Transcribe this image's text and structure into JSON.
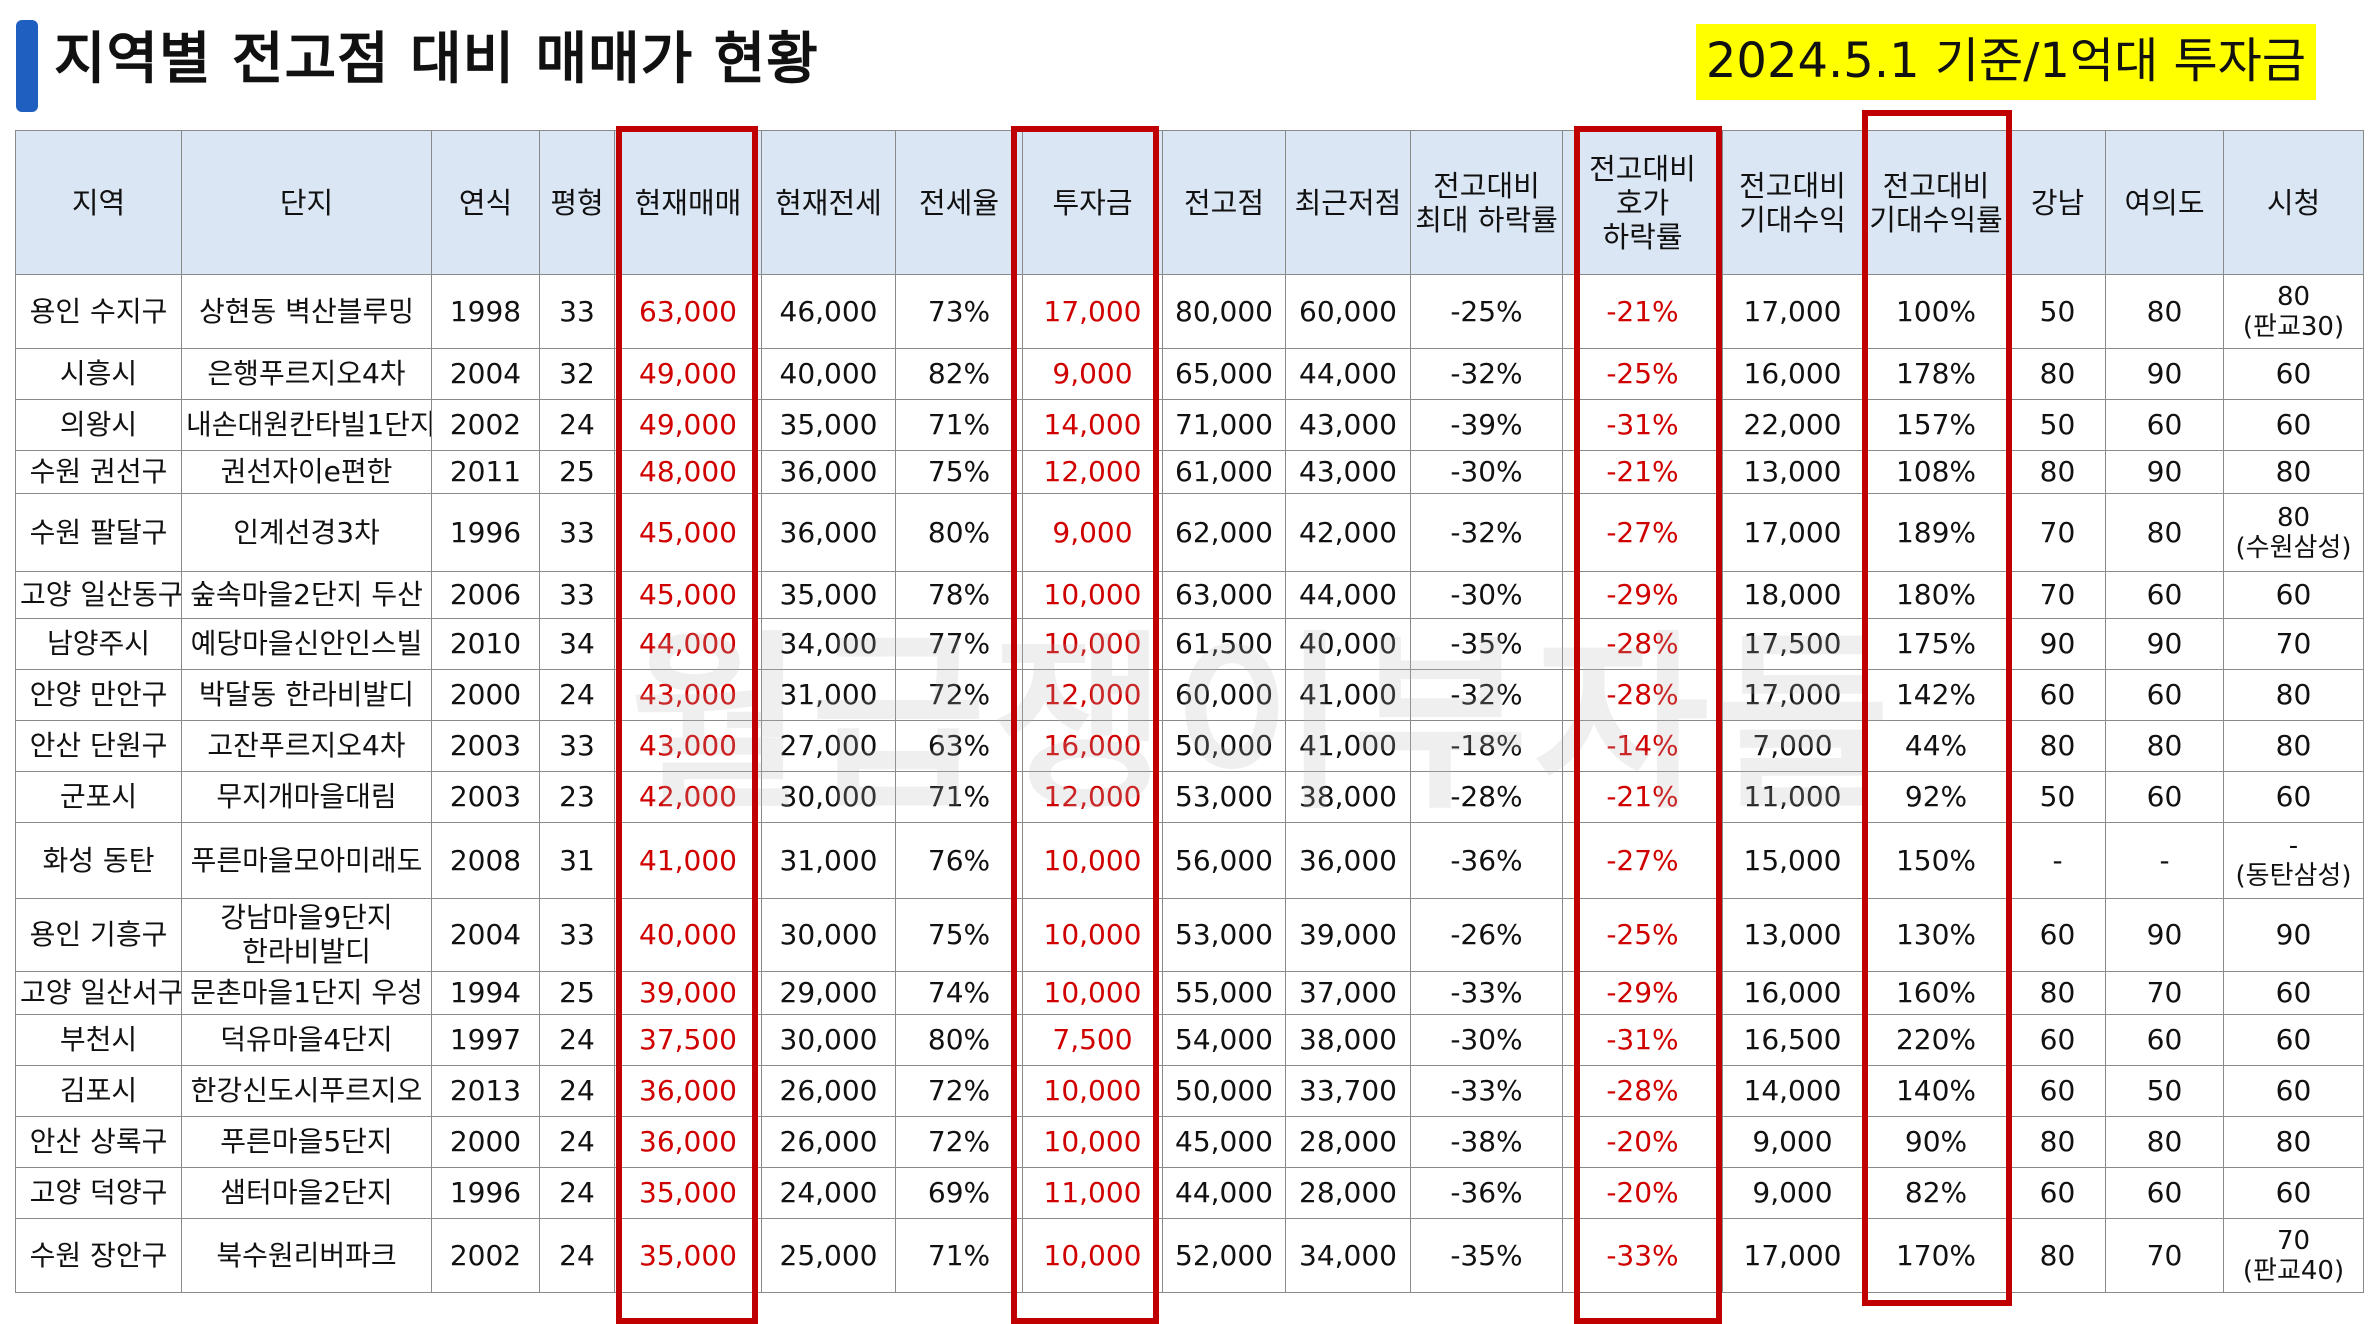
{
  "title": "지역별 전고점 대비 매매가 현황",
  "badge": "2024.5.1 기준/1억대 투자금",
  "watermark": "월급쟁이부자들",
  "colors": {
    "accent": "#1f5fbf",
    "highlight_box": "#c00000",
    "red_text": "#d00000",
    "header_bg": "#dbe6f4",
    "badge_bg": "#ffff00"
  },
  "table": {
    "headers": [
      [
        "지역"
      ],
      [
        "단지"
      ],
      [
        "연식"
      ],
      [
        "평형"
      ],
      [
        "현재매매"
      ],
      [
        "현재전세"
      ],
      [
        "전세율"
      ],
      [
        "투자금"
      ],
      [
        "전고점"
      ],
      [
        "최근저점"
      ],
      [
        "전고대비",
        "최대 하락률"
      ],
      [
        "전고대비",
        "호가",
        "하락률"
      ],
      [
        "전고대비",
        "기대수익"
      ],
      [
        "전고대비",
        "기대수익률"
      ],
      [
        "강남"
      ],
      [
        "여의도"
      ],
      [
        "시청"
      ]
    ],
    "rows": [
      {
        "region": "용인 수지구",
        "complex": [
          "상현동 벽산블루밍"
        ],
        "year": "1998",
        "size": "33",
        "price": "63,000",
        "jeonse": "46,000",
        "ratio": "73%",
        "invest": "17,000",
        "peak": "80,000",
        "low": "60,000",
        "maxdrop": "-25%",
        "askdrop": "-21%",
        "exp": "17,000",
        "exprate": "100%",
        "gangnam": "50",
        "yeouido": "80",
        "cityhall": "80",
        "cityhall_note": "(판교30)"
      },
      {
        "region": "시흥시",
        "complex": [
          "은행푸르지오4차"
        ],
        "year": "2004",
        "size": "32",
        "price": "49,000",
        "jeonse": "40,000",
        "ratio": "82%",
        "invest": "9,000",
        "peak": "65,000",
        "low": "44,000",
        "maxdrop": "-32%",
        "askdrop": "-25%",
        "exp": "16,000",
        "exprate": "178%",
        "gangnam": "80",
        "yeouido": "90",
        "cityhall": "60",
        "cityhall_note": ""
      },
      {
        "region": "의왕시",
        "complex": [
          "내손대원칸타빌1단지"
        ],
        "year": "2002",
        "size": "24",
        "price": "49,000",
        "jeonse": "35,000",
        "ratio": "71%",
        "invest": "14,000",
        "peak": "71,000",
        "low": "43,000",
        "maxdrop": "-39%",
        "askdrop": "-31%",
        "exp": "22,000",
        "exprate": "157%",
        "gangnam": "50",
        "yeouido": "60",
        "cityhall": "60",
        "cityhall_note": ""
      },
      {
        "region": "수원 권선구",
        "complex": [
          "권선자이e편한"
        ],
        "year": "2011",
        "size": "25",
        "price": "48,000",
        "jeonse": "36,000",
        "ratio": "75%",
        "invest": "12,000",
        "peak": "61,000",
        "low": "43,000",
        "maxdrop": "-30%",
        "askdrop": "-21%",
        "exp": "13,000",
        "exprate": "108%",
        "gangnam": "80",
        "yeouido": "90",
        "cityhall": "80",
        "cityhall_note": ""
      },
      {
        "region": "수원 팔달구",
        "complex": [
          "인계선경3차"
        ],
        "year": "1996",
        "size": "33",
        "price": "45,000",
        "jeonse": "36,000",
        "ratio": "80%",
        "invest": "9,000",
        "peak": "62,000",
        "low": "42,000",
        "maxdrop": "-32%",
        "askdrop": "-27%",
        "exp": "17,000",
        "exprate": "189%",
        "gangnam": "70",
        "yeouido": "80",
        "cityhall": "80",
        "cityhall_note": "(수원삼성)"
      },
      {
        "region": "고양 일산동구",
        "complex": [
          "숲속마을2단지 두산"
        ],
        "year": "2006",
        "size": "33",
        "price": "45,000",
        "jeonse": "35,000",
        "ratio": "78%",
        "invest": "10,000",
        "peak": "63,000",
        "low": "44,000",
        "maxdrop": "-30%",
        "askdrop": "-29%",
        "exp": "18,000",
        "exprate": "180%",
        "gangnam": "70",
        "yeouido": "60",
        "cityhall": "60",
        "cityhall_note": ""
      },
      {
        "region": "남양주시",
        "complex": [
          "예당마을신안인스빌"
        ],
        "year": "2010",
        "size": "34",
        "price": "44,000",
        "jeonse": "34,000",
        "ratio": "77%",
        "invest": "10,000",
        "peak": "61,500",
        "low": "40,000",
        "maxdrop": "-35%",
        "askdrop": "-28%",
        "exp": "17,500",
        "exprate": "175%",
        "gangnam": "90",
        "yeouido": "90",
        "cityhall": "70",
        "cityhall_note": ""
      },
      {
        "region": "안양 만안구",
        "complex": [
          "박달동 한라비발디"
        ],
        "year": "2000",
        "size": "24",
        "price": "43,000",
        "jeonse": "31,000",
        "ratio": "72%",
        "invest": "12,000",
        "peak": "60,000",
        "low": "41,000",
        "maxdrop": "-32%",
        "askdrop": "-28%",
        "exp": "17,000",
        "exprate": "142%",
        "gangnam": "60",
        "yeouido": "60",
        "cityhall": "80",
        "cityhall_note": ""
      },
      {
        "region": "안산 단원구",
        "complex": [
          "고잔푸르지오4차"
        ],
        "year": "2003",
        "size": "33",
        "price": "43,000",
        "jeonse": "27,000",
        "ratio": "63%",
        "invest": "16,000",
        "peak": "50,000",
        "low": "41,000",
        "maxdrop": "-18%",
        "askdrop": "-14%",
        "exp": "7,000",
        "exprate": "44%",
        "gangnam": "80",
        "yeouido": "80",
        "cityhall": "80",
        "cityhall_note": ""
      },
      {
        "region": "군포시",
        "complex": [
          "무지개마을대림"
        ],
        "year": "2003",
        "size": "23",
        "price": "42,000",
        "jeonse": "30,000",
        "ratio": "71%",
        "invest": "12,000",
        "peak": "53,000",
        "low": "38,000",
        "maxdrop": "-28%",
        "askdrop": "-21%",
        "exp": "11,000",
        "exprate": "92%",
        "gangnam": "50",
        "yeouido": "60",
        "cityhall": "60",
        "cityhall_note": ""
      },
      {
        "region": "화성  동탄",
        "complex": [
          "푸른마을모아미래도"
        ],
        "year": "2008",
        "size": "31",
        "price": "41,000",
        "jeonse": "31,000",
        "ratio": "76%",
        "invest": "10,000",
        "peak": "56,000",
        "low": "36,000",
        "maxdrop": "-36%",
        "askdrop": "-27%",
        "exp": "15,000",
        "exprate": "150%",
        "gangnam": "-",
        "yeouido": "-",
        "cityhall": "-",
        "cityhall_note": "(동탄삼성)"
      },
      {
        "region": "용인 기흥구",
        "complex": [
          "강남마을9단지",
          "한라비발디"
        ],
        "year": "2004",
        "size": "33",
        "price": "40,000",
        "jeonse": "30,000",
        "ratio": "75%",
        "invest": "10,000",
        "peak": "53,000",
        "low": "39,000",
        "maxdrop": "-26%",
        "askdrop": "-25%",
        "exp": "13,000",
        "exprate": "130%",
        "gangnam": "60",
        "yeouido": "90",
        "cityhall": "90",
        "cityhall_note": ""
      },
      {
        "region": "고양 일산서구",
        "complex": [
          "문촌마을1단지 우성"
        ],
        "year": "1994",
        "size": "25",
        "price": "39,000",
        "jeonse": "29,000",
        "ratio": "74%",
        "invest": "10,000",
        "peak": "55,000",
        "low": "37,000",
        "maxdrop": "-33%",
        "askdrop": "-29%",
        "exp": "16,000",
        "exprate": "160%",
        "gangnam": "80",
        "yeouido": "70",
        "cityhall": "60",
        "cityhall_note": ""
      },
      {
        "region": "부천시",
        "complex": [
          "덕유마을4단지"
        ],
        "year": "1997",
        "size": "24",
        "price": "37,500",
        "jeonse": "30,000",
        "ratio": "80%",
        "invest": "7,500",
        "peak": "54,000",
        "low": "38,000",
        "maxdrop": "-30%",
        "askdrop": "-31%",
        "exp": "16,500",
        "exprate": "220%",
        "gangnam": "60",
        "yeouido": "60",
        "cityhall": "60",
        "cityhall_note": ""
      },
      {
        "region": "김포시",
        "complex": [
          "한강신도시푸르지오"
        ],
        "year": "2013",
        "size": "24",
        "price": "36,000",
        "jeonse": "26,000",
        "ratio": "72%",
        "invest": "10,000",
        "peak": "50,000",
        "low": "33,700",
        "maxdrop": "-33%",
        "askdrop": "-28%",
        "exp": "14,000",
        "exprate": "140%",
        "gangnam": "60",
        "yeouido": "50",
        "cityhall": "60",
        "cityhall_note": ""
      },
      {
        "region": "안산  상록구",
        "complex": [
          "푸른마을5단지"
        ],
        "year": "2000",
        "size": "24",
        "price": "36,000",
        "jeonse": "26,000",
        "ratio": "72%",
        "invest": "10,000",
        "peak": "45,000",
        "low": "28,000",
        "maxdrop": "-38%",
        "askdrop": "-20%",
        "exp": "9,000",
        "exprate": "90%",
        "gangnam": "80",
        "yeouido": "80",
        "cityhall": "80",
        "cityhall_note": ""
      },
      {
        "region": "고양  덕양구",
        "complex": [
          "샘터마을2단지"
        ],
        "year": "1996",
        "size": "24",
        "price": "35,000",
        "jeonse": "24,000",
        "ratio": "69%",
        "invest": "11,000",
        "peak": "44,000",
        "low": "28,000",
        "maxdrop": "-36%",
        "askdrop": "-20%",
        "exp": "9,000",
        "exprate": "82%",
        "gangnam": "60",
        "yeouido": "60",
        "cityhall": "60",
        "cityhall_note": ""
      },
      {
        "region": "수원  장안구",
        "complex": [
          "북수원리버파크"
        ],
        "year": "2002",
        "size": "24",
        "price": "35,000",
        "jeonse": "25,000",
        "ratio": "71%",
        "invest": "10,000",
        "peak": "52,000",
        "low": "34,000",
        "maxdrop": "-35%",
        "askdrop": "-33%",
        "exp": "17,000",
        "exprate": "170%",
        "gangnam": "80",
        "yeouido": "70",
        "cityhall": "70",
        "cityhall_note": "(판교40)"
      }
    ]
  }
}
